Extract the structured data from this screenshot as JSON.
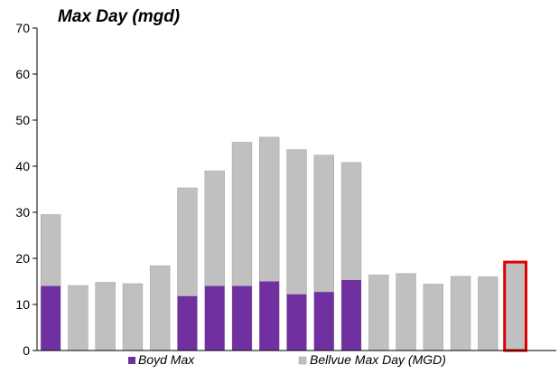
{
  "chart_data": {
    "type": "bar",
    "title": "Max Day (mgd)",
    "xlabel": "",
    "ylabel": "",
    "ylim": [
      0,
      70
    ],
    "yticks": [
      0,
      10,
      20,
      30,
      40,
      50,
      60,
      70
    ],
    "grid": false,
    "legend_position": "bottom",
    "categories": [
      "",
      "",
      "",
      "",
      "",
      "",
      "",
      "",
      "",
      "",
      "",
      "",
      "",
      "",
      "",
      "",
      "",
      "",
      ""
    ],
    "series": [
      {
        "name": "Boyd Max",
        "color": "#7030a0",
        "values": [
          14,
          null,
          null,
          null,
          null,
          11.8,
          14,
          14,
          15,
          12.2,
          12.7,
          15.3,
          null,
          null,
          null,
          null,
          null,
          null,
          null
        ]
      },
      {
        "name": "Bellvue Max Day (MGD)",
        "color": "#c0c0c0",
        "values": [
          29.5,
          14.1,
          14.8,
          14.5,
          18.4,
          35.3,
          39,
          45.2,
          46.3,
          43.6,
          42.4,
          40.8,
          16.4,
          16.7,
          14.4,
          16.1,
          16,
          19,
          0
        ]
      }
    ],
    "highlight": {
      "index": 17,
      "color": "#e00000"
    }
  }
}
